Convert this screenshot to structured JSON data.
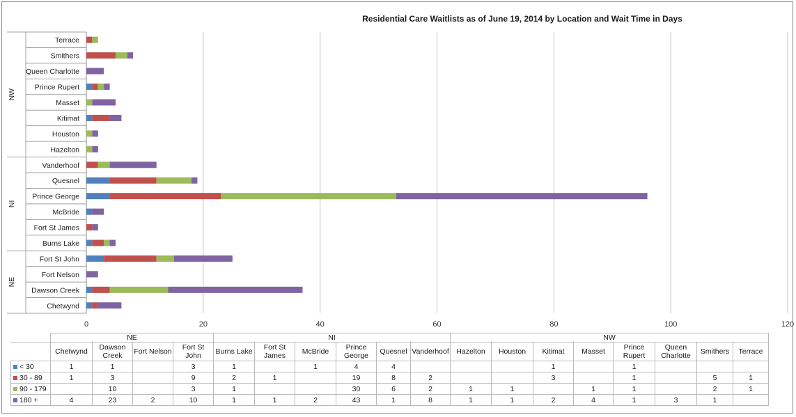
{
  "chart_data": {
    "type": "bar",
    "orientation": "horizontal",
    "stacked": true,
    "title": "Residential Care Waitlists as of June 19, 2014 by Location and Wait Time in Days",
    "xlim": [
      0,
      120
    ],
    "xticks": [
      0,
      20,
      40,
      60,
      80,
      100,
      120
    ],
    "grid": true,
    "groups": [
      {
        "name": "NE",
        "categories": [
          "Chetwynd",
          "Dawson Creek",
          "Fort Nelson",
          "Fort St John"
        ]
      },
      {
        "name": "NI",
        "categories": [
          "Burns Lake",
          "Fort St James",
          "McBride",
          "Prince George",
          "Quesnel",
          "Vanderhoof"
        ]
      },
      {
        "name": "NW",
        "categories": [
          "Hazelton",
          "Houston",
          "Kitimat",
          "Masset",
          "Prince Rupert",
          "Queen Charlotte",
          "Smithers",
          "Terrace"
        ]
      }
    ],
    "categories": [
      "Chetwynd",
      "Dawson Creek",
      "Fort Nelson",
      "Fort St John",
      "Burns Lake",
      "Fort St James",
      "McBride",
      "Prince George",
      "Quesnel",
      "Vanderhoof",
      "Hazelton",
      "Houston",
      "Kitimat",
      "Masset",
      "Prince Rupert",
      "Queen Charlotte",
      "Smithers",
      "Terrace"
    ],
    "category_labels": [
      "Chetwynd",
      "Dawson Creek",
      "Fort Nelson",
      "Fort St John",
      "Burns Lake",
      "Fort St James",
      "McBride",
      "Prince George",
      "Quesnel",
      "Vanderhoof",
      "Hazelton",
      "Houston",
      "Kitimat",
      "Masset",
      "Prince Rupert",
      "Queen Charlotte",
      "Smithers",
      "Terrace"
    ],
    "series": [
      {
        "name": "< 30",
        "color": "#4f81bd",
        "values": [
          1,
          1,
          null,
          3,
          1,
          null,
          1,
          4,
          4,
          null,
          null,
          null,
          1,
          null,
          1,
          null,
          null,
          null
        ]
      },
      {
        "name": "30 - 89",
        "color": "#c0504d",
        "values": [
          1,
          3,
          null,
          9,
          2,
          1,
          null,
          19,
          8,
          2,
          null,
          null,
          3,
          null,
          1,
          null,
          5,
          1
        ]
      },
      {
        "name": "90 - 179",
        "color": "#9bbb59",
        "values": [
          null,
          10,
          null,
          3,
          1,
          null,
          null,
          30,
          6,
          2,
          1,
          1,
          null,
          1,
          1,
          null,
          2,
          1
        ]
      },
      {
        "name": "180 +",
        "color": "#8064a2",
        "values": [
          4,
          23,
          2,
          10,
          1,
          1,
          2,
          43,
          1,
          8,
          1,
          1,
          2,
          4,
          1,
          3,
          1,
          null
        ]
      }
    ]
  }
}
